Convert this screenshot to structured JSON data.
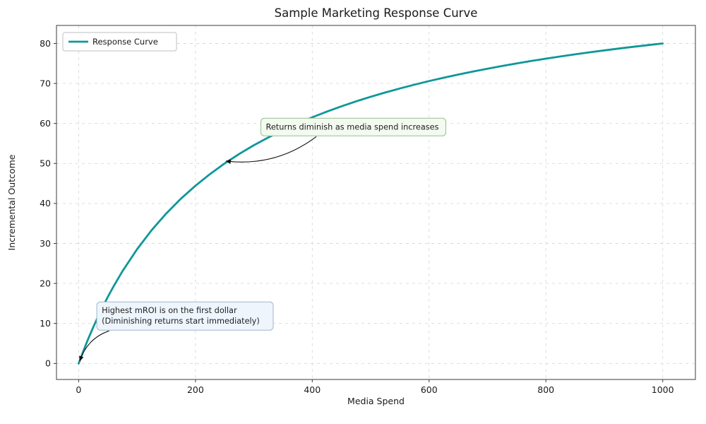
{
  "chart_data": {
    "type": "line",
    "title": "Sample Marketing Response Curve",
    "xlabel": "Media Spend",
    "ylabel": "Incremental Outcome",
    "xlim": [
      -38,
      1056
    ],
    "ylim": [
      -4,
      84.5
    ],
    "x_ticks": [
      0,
      200,
      400,
      600,
      800,
      1000
    ],
    "y_ticks": [
      0,
      10,
      20,
      30,
      40,
      50,
      60,
      70,
      80
    ],
    "grid": true,
    "grid_style": "dashed",
    "grid_color": "#d9d9d9",
    "axis_color": "#3b3b3b",
    "text_color": "#1a1a1a",
    "legend": {
      "position": "upper-left",
      "entries": [
        {
          "label": "Response Curve",
          "color": "#0f9798"
        }
      ]
    },
    "series": [
      {
        "name": "Response Curve",
        "color": "#0f9798",
        "line_width": 2.8,
        "x": [
          0,
          5,
          10,
          15,
          20,
          25,
          30,
          40,
          50,
          60,
          75,
          100,
          125,
          150,
          175,
          200,
          225,
          250,
          275,
          300,
          325,
          350,
          375,
          400,
          425,
          450,
          475,
          500,
          525,
          550,
          575,
          600,
          625,
          650,
          675,
          700,
          725,
          750,
          775,
          800,
          825,
          850,
          875,
          900,
          925,
          950,
          975,
          1000
        ],
        "y": [
          0,
          1.96,
          3.85,
          5.66,
          7.41,
          9.09,
          10.71,
          13.79,
          16.67,
          19.35,
          23.08,
          28.57,
          33.33,
          37.5,
          41.18,
          44.44,
          47.37,
          50,
          52.38,
          54.55,
          56.52,
          58.33,
          60,
          61.54,
          62.96,
          64.29,
          65.52,
          66.67,
          67.74,
          68.75,
          69.7,
          70.59,
          71.43,
          72.22,
          72.97,
          73.68,
          74.36,
          75,
          75.61,
          76.19,
          76.74,
          77.27,
          77.78,
          78.26,
          78.72,
          79.17,
          79.59,
          80
        ]
      }
    ],
    "annotations": [
      {
        "id": "diminishing-returns-note",
        "lines": [
          "Returns diminish as media spend increases"
        ],
        "xytext": [
          312,
          61.3
        ],
        "xy": [
          252,
          50.6
        ],
        "bg": "#f3faef",
        "border": "#98bf8f",
        "arrow_start_frac": 0.3,
        "arrow_rad": 0.2
      },
      {
        "id": "first-dollar-note",
        "lines": [
          "Highest mROI is on the first dollar",
          "(Diminishing returns start immediately)"
        ],
        "xytext": [
          31,
          15.4
        ],
        "xy": [
          2,
          0.6
        ],
        "bg": "#eef5fc",
        "border": "#9fb6cc",
        "arrow_start_frac": 0.07,
        "arrow_rad": -0.25
      }
    ]
  }
}
